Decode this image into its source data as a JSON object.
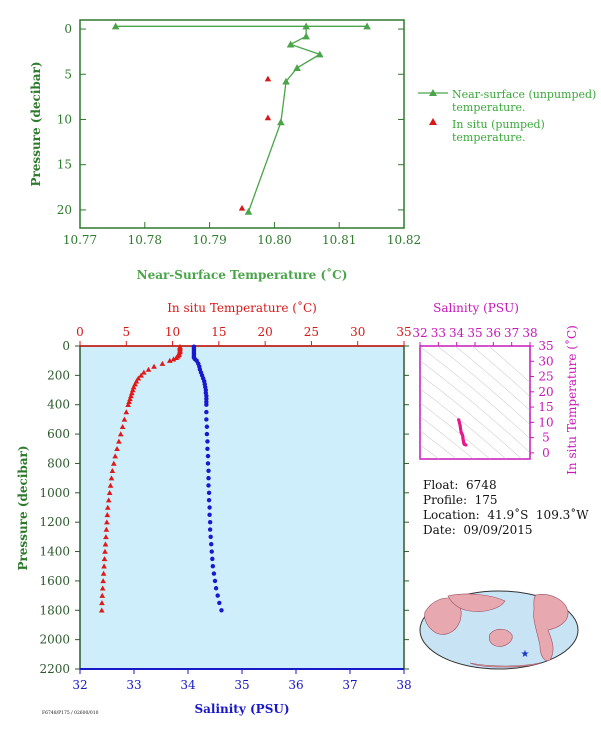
{
  "chart_data": [
    {
      "type": "line",
      "xlabel": "Near-Surface Temperature (˚C)",
      "ylabel": "Pressure (decibar)",
      "xlim": [
        10.77,
        10.82
      ],
      "ylim": [
        22,
        -1
      ],
      "xticks": [
        "10.77",
        "10.78",
        "10.79",
        "10.80",
        "10.81",
        "10.82"
      ],
      "yticks": [
        "0",
        "5",
        "10",
        "15",
        "20"
      ],
      "series": [
        {
          "name": "Near-surface (unpumped) temperature.",
          "color": "#4aa54a",
          "marker": "triangle",
          "points": [
            [
              10.7755,
              -0.3
            ],
            [
              10.8143,
              -0.3
            ],
            [
              10.8049,
              -0.3
            ],
            [
              10.8049,
              0.8
            ],
            [
              10.8025,
              1.7
            ],
            [
              10.807,
              2.8
            ],
            [
              10.8035,
              4.3
            ],
            [
              10.8018,
              5.8
            ],
            [
              10.801,
              10.3
            ],
            [
              10.796,
              20.2
            ]
          ]
        },
        {
          "name": "In situ (pumped) temperature.",
          "color": "#d81818",
          "marker": "triangle",
          "points": [
            [
              10.799,
              5.5
            ],
            [
              10.799,
              9.8
            ],
            [
              10.795,
              19.8
            ]
          ]
        }
      ]
    },
    {
      "type": "line",
      "title": "In situ Temperature (˚C)",
      "xlabel": "Salinity (PSU)",
      "ylabel": "Pressure (decibar)",
      "xlim_salinity": [
        32,
        38
      ],
      "xlim_temperature": [
        0,
        35
      ],
      "ylim": [
        2200,
        0
      ],
      "temp_ticks": [
        "0",
        "5",
        "10",
        "15",
        "20",
        "25",
        "30",
        "35"
      ],
      "sal_ticks": [
        "32",
        "33",
        "34",
        "35",
        "36",
        "37",
        "38"
      ],
      "p_ticks": [
        "0",
        "200",
        "400",
        "600",
        "800",
        "1000",
        "1200",
        "1400",
        "1600",
        "1800",
        "2000",
        "2200"
      ],
      "temperature": {
        "name": "In situ Temperature",
        "color": "#e01818",
        "pressure": [
          5,
          10,
          20,
          30,
          40,
          50,
          60,
          70,
          80,
          90,
          100,
          120,
          140,
          160,
          180,
          200,
          220,
          240,
          260,
          280,
          300,
          320,
          340,
          360,
          380,
          400,
          450,
          500,
          550,
          600,
          650,
          700,
          750,
          800,
          850,
          900,
          950,
          1000,
          1050,
          1100,
          1150,
          1200,
          1250,
          1300,
          1350,
          1400,
          1450,
          1500,
          1550,
          1600,
          1650,
          1700,
          1750,
          1800
        ],
        "values": [
          10.8,
          10.8,
          10.8,
          10.8,
          10.8,
          10.7,
          10.7,
          10.6,
          10.4,
          10.1,
          9.7,
          8.9,
          8.0,
          7.4,
          6.9,
          6.6,
          6.3,
          6.1,
          5.95,
          5.8,
          5.7,
          5.6,
          5.5,
          5.4,
          5.3,
          5.2,
          5.0,
          4.8,
          4.6,
          4.4,
          4.2,
          4.0,
          3.8,
          3.65,
          3.5,
          3.4,
          3.3,
          3.2,
          3.1,
          3.0,
          2.95,
          2.9,
          2.85,
          2.8,
          2.75,
          2.7,
          2.65,
          2.6,
          2.55,
          2.5,
          2.45,
          2.4,
          2.37,
          2.35
        ]
      },
      "salinity": {
        "name": "Salinity",
        "color": "#1818d0",
        "pressure": [
          5,
          10,
          20,
          30,
          40,
          50,
          60,
          70,
          80,
          90,
          100,
          120,
          140,
          160,
          180,
          200,
          220,
          240,
          260,
          280,
          300,
          320,
          340,
          360,
          380,
          400,
          450,
          500,
          550,
          600,
          650,
          700,
          750,
          800,
          850,
          900,
          950,
          1000,
          1050,
          1100,
          1150,
          1200,
          1250,
          1300,
          1350,
          1400,
          1450,
          1500,
          1550,
          1600,
          1650,
          1700,
          1750,
          1800
        ],
        "values": [
          34.11,
          34.11,
          34.11,
          34.11,
          34.11,
          34.11,
          34.11,
          34.11,
          34.11,
          34.13,
          34.16,
          34.19,
          34.21,
          34.22,
          34.24,
          34.26,
          34.28,
          34.3,
          34.31,
          34.32,
          34.33,
          34.33,
          34.34,
          34.34,
          34.34,
          34.34,
          34.34,
          34.34,
          34.35,
          34.35,
          34.36,
          34.36,
          34.37,
          34.37,
          34.38,
          34.38,
          34.38,
          34.39,
          34.39,
          34.4,
          34.4,
          34.41,
          34.41,
          34.42,
          34.43,
          34.44,
          34.45,
          34.46,
          34.48,
          34.5,
          34.52,
          34.55,
          34.58,
          34.62
        ]
      }
    },
    {
      "type": "scatter",
      "title": "Salinity (PSU)",
      "xlabel": "Salinity (PSU)",
      "ylabel": "In situ Temperature (˚C)",
      "xlim": [
        32,
        38
      ],
      "ylim": [
        -2,
        35
      ],
      "xticks": [
        "32",
        "33",
        "34",
        "35",
        "36",
        "37",
        "38"
      ],
      "yticks": [
        "0",
        "5",
        "10",
        "15",
        "20",
        "25",
        "30",
        "35"
      ],
      "color": "#e8188c",
      "points": [
        [
          34.11,
          10.8
        ],
        [
          34.15,
          9.9
        ],
        [
          34.19,
          8.9
        ],
        [
          34.21,
          8.0
        ],
        [
          34.24,
          6.9
        ],
        [
          34.28,
          6.3
        ],
        [
          34.32,
          5.8
        ],
        [
          34.34,
          5.2
        ],
        [
          34.34,
          4.8
        ],
        [
          34.36,
          4.2
        ],
        [
          34.38,
          3.6
        ],
        [
          34.39,
          3.2
        ],
        [
          34.41,
          2.9
        ],
        [
          34.43,
          2.8
        ],
        [
          34.5,
          2.6
        ]
      ]
    }
  ],
  "info": {
    "float": "Float:  6748",
    "profile": "Profile:  175",
    "location": "Location:  41.9˚S  109.3˚W",
    "date": "Date:  09/09/2015"
  },
  "footer_code": "F6748/P175 / 02600/010",
  "map": {
    "ocean_color": "#c8e4f4",
    "land_color": "#e8a8b0",
    "marker_symbol": "★",
    "marker_color": "#1838c8"
  }
}
